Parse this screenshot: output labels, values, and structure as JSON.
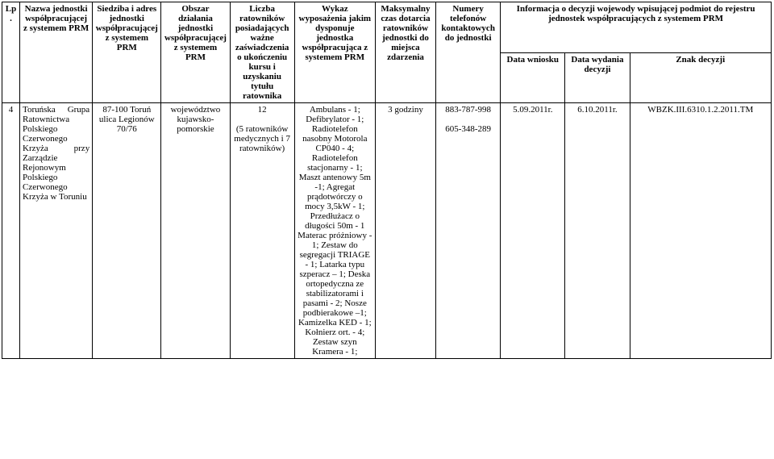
{
  "headers": {
    "lp": "Lp.",
    "nazwa": "Nazwa jednostki współpracującej z systemem PRM",
    "siedziba": "Siedziba i adres jednostki współpracującej z systemem PRM",
    "obszar": "Obszar działania jednostki współpracującej z systemem PRM",
    "liczba": "Liczba ratowników posiadających ważne zaświadczenia o ukończeniu kursu i uzyskaniu tytułu ratownika",
    "wykaz": "Wykaz wyposażenia jakim dysponuje jednostka współpracująca z systemem PRM",
    "maks": "Maksymalny czas dotarcia ratowników jednostki do miejsca zdarzenia",
    "numery": "Numery telefonów kontaktowych do jednostki",
    "info_top": "Informacja o decyzji wojewody wpisującej podmiot do rejestru jednostek współpracujących z systemem PRM",
    "data_wniosku": "Data wniosku",
    "data_wydania": "Data wydania decyzji",
    "znak": "Znak decyzji"
  },
  "row": {
    "lp": "4",
    "nazwa": "Toruńska Grupa Ratownictwa Polskiego Czerwonego Krzyża przy Zarządzie Rejonowym Polskiego Czerwonego Krzyża w Toruniu",
    "siedziba": "87-100 Toruń ulica Legionów 70/76",
    "obszar": "województwo kujawsko-pomorskie",
    "liczba": "12\n\n(5 ratowników medycznych i 7 ratowników)",
    "wykaz": "Ambulans - 1; Defibrylator - 1; Radiotelefon nasobny Motorola CP040 - 4; Radiotelefon stacjonarny - 1; Maszt antenowy 5m -1; Agregat prądotwórczy o mocy 3,5kW - 1; Przedłużacz o długości 50m - 1 Materac próżniowy - 1; Zestaw do segregacji TRIAGE - 1; Latarka typu szperacz – 1; Deska ortopedyczna ze stabilizatorami i pasami - 2; Nosze podbierakowe –1; Kamizelka KED - 1; Kołnierz ort. - 4; Zestaw szyn Kramera - 1;",
    "maks": "3 godziny",
    "numery": "883-787-998\n\n605-348-289",
    "data_wniosku": "5.09.2011r.",
    "data_wydania": "6.10.2011r.",
    "znak": "WBZK.III.6310.1.2.2011.TM"
  },
  "widths": {
    "lp": "22",
    "nazwa": "90",
    "siedziba": "85",
    "obszar": "85",
    "liczba": "80",
    "wykaz": "100",
    "maks": "75",
    "numery": "80",
    "data_wniosku": "80",
    "data_wydania": "80",
    "znak": "175"
  }
}
